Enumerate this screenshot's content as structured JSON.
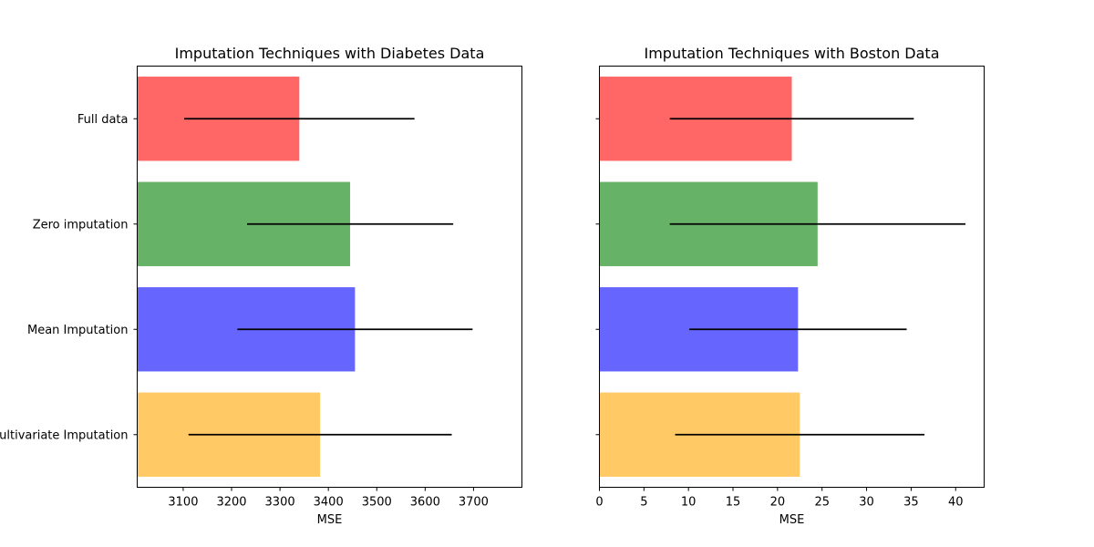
{
  "chart_data": [
    {
      "type": "bar",
      "orientation": "horizontal",
      "title": "Imputation Techniques with Diabetes Data",
      "xlabel": "MSE",
      "ylabel": "",
      "categories": [
        "Full data",
        "Zero imputation",
        "Mean Imputation",
        "Multivariate Imputation"
      ],
      "show_category_labels": true,
      "values": [
        3340,
        3445,
        3455,
        3383
      ],
      "errors": [
        238,
        213,
        243,
        272
      ],
      "colors": [
        "#ff6666",
        "#66b266",
        "#6666ff",
        "#ffc966"
      ],
      "error_color": "#000000",
      "xlim": [
        3005,
        3800
      ],
      "xticks": [
        3100,
        3200,
        3300,
        3400,
        3500,
        3600,
        3700
      ],
      "xtick_labels": [
        "3100",
        "3200",
        "3300",
        "3400",
        "3500",
        "3600",
        "3700"
      ],
      "grid": false
    },
    {
      "type": "bar",
      "orientation": "horizontal",
      "title": "Imputation Techniques with Boston Data",
      "xlabel": "MSE",
      "ylabel": "",
      "categories": [
        "Full data",
        "Zero imputation",
        "Mean Imputation",
        "Multivariate Imputation"
      ],
      "show_category_labels": false,
      "values": [
        21.6,
        24.5,
        22.3,
        22.5
      ],
      "errors": [
        13.7,
        16.6,
        12.2,
        14.0
      ],
      "colors": [
        "#ff6666",
        "#66b266",
        "#6666ff",
        "#ffc966"
      ],
      "error_color": "#000000",
      "xlim": [
        0,
        43.2
      ],
      "xticks": [
        0,
        5,
        10,
        15,
        20,
        25,
        30,
        35,
        40
      ],
      "xtick_labels": [
        "0",
        "5",
        "10",
        "15",
        "20",
        "25",
        "30",
        "35",
        "40"
      ],
      "grid": false
    }
  ]
}
